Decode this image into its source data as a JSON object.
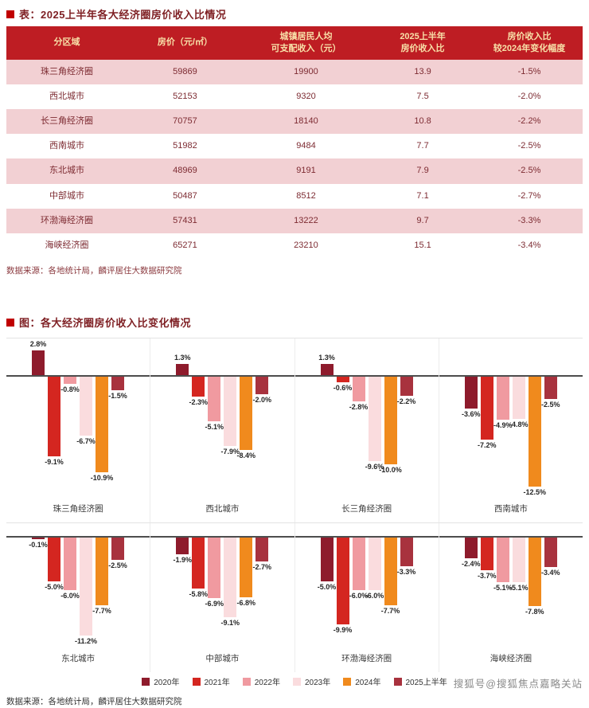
{
  "page": {
    "table_section_title": "表：2025上半年各大经济圈房价收入比情况",
    "chart_section_title": "图：各大经济圈房价收入比变化情况",
    "table_source": "数据来源：各地统计局，麟评居住大数据研究院",
    "chart_source": "数据来源：各地统计局，麟评居住大数据研究院",
    "watermark": "搜狐号@搜狐焦点嘉略关站"
  },
  "theme": {
    "header_bg": "#be1d23",
    "header_text": "#f8e0a8",
    "alt_row_bg": "#f2d0d3",
    "cell_text": "#7d2b32",
    "bullet_red": "#c00000"
  },
  "table": {
    "headers": [
      "分区域",
      "房价（元/㎡）",
      "城镇居民人均\n可支配收入（元）",
      "2025上半年\n房价收入比",
      "房价收入比\n较2024年变化幅度"
    ],
    "rows": [
      [
        "珠三角经济圈",
        "59869",
        "19900",
        "13.9",
        "-1.5%"
      ],
      [
        "西北城市",
        "52153",
        "9320",
        "7.5",
        "-2.0%"
      ],
      [
        "长三角经济圈",
        "70757",
        "18140",
        "10.8",
        "-2.2%"
      ],
      [
        "西南城市",
        "51982",
        "9484",
        "7.7",
        "-2.5%"
      ],
      [
        "东北城市",
        "48969",
        "9191",
        "7.9",
        "-2.5%"
      ],
      [
        "中部城市",
        "50487",
        "8512",
        "7.1",
        "-2.7%"
      ],
      [
        "环渤海经济圈",
        "57431",
        "13222",
        "9.7",
        "-3.3%"
      ],
      [
        "海峡经济圈",
        "65271",
        "23210",
        "15.1",
        "-3.4%"
      ]
    ]
  },
  "chart_data": {
    "type": "bar",
    "title": "图：各大经济圈房价收入比变化情况",
    "unit": "%",
    "ylim": [
      -13,
      3
    ],
    "grid": false,
    "legend_position": "bottom",
    "series_names": [
      "2020年",
      "2021年",
      "2022年",
      "2023年",
      "2024年",
      "2025上半年"
    ],
    "series_colors": [
      "#8e1b2c",
      "#d42620",
      "#f09aa0",
      "#fadcde",
      "#f08a1d",
      "#a8323e"
    ],
    "rows": [
      [
        "珠三角经济圈",
        "西北城市",
        "长三角经济圈",
        "西南城市"
      ],
      [
        "东北城市",
        "中部城市",
        "环渤海经济圈",
        "海峡经济圈"
      ]
    ],
    "groups": [
      {
        "name": "珠三角经济圈",
        "values": [
          2.8,
          -9.1,
          -0.8,
          -6.7,
          -10.9,
          -1.5
        ]
      },
      {
        "name": "西北城市",
        "values": [
          1.3,
          -2.3,
          -5.1,
          -7.9,
          -8.4,
          -2.0
        ]
      },
      {
        "name": "长三角经济圈",
        "values": [
          1.3,
          -0.6,
          -2.8,
          -9.6,
          -10.0,
          -2.2
        ]
      },
      {
        "name": "西南城市",
        "values": [
          -3.6,
          -7.2,
          -4.9,
          -4.8,
          -12.5,
          -2.5
        ]
      },
      {
        "name": "东北城市",
        "values": [
          -0.1,
          -5.0,
          -6.0,
          -11.2,
          -7.7,
          -2.5
        ]
      },
      {
        "name": "中部城市",
        "values": [
          -1.9,
          -5.8,
          -6.9,
          -9.1,
          -6.8,
          -2.7
        ]
      },
      {
        "name": "环渤海经济圈",
        "values": [
          -5.0,
          -9.9,
          -6.0,
          -6.0,
          -7.7,
          -3.3
        ]
      },
      {
        "name": "海峡经济圈",
        "values": [
          -2.4,
          -3.7,
          -5.1,
          -5.1,
          -7.8,
          -3.4
        ]
      }
    ]
  }
}
